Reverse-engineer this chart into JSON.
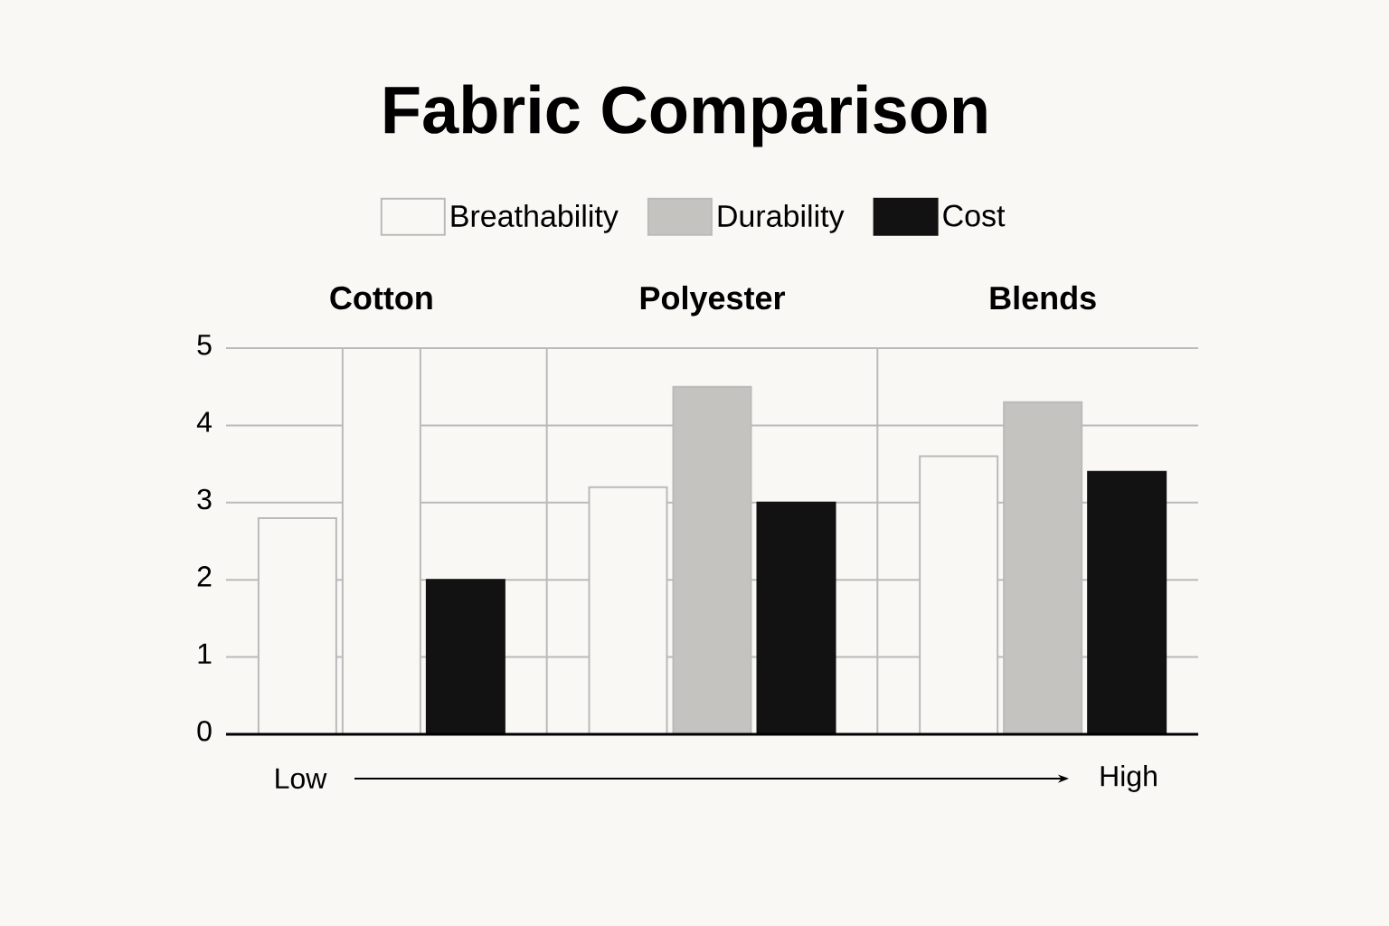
{
  "chart_data": {
    "type": "bar",
    "title": "Fabric Comparison",
    "categories": [
      "Cotton",
      "Polyester",
      "Blends"
    ],
    "series": [
      {
        "name": "Breathability",
        "color": "#faf8f5",
        "values": [
          2.8,
          3.2,
          3.6
        ]
      },
      {
        "name": "Durability",
        "color": "#c4c3bf",
        "colors": [
          "#faf8f5",
          "#c4c3bf",
          "#c4c3bf"
        ],
        "values": [
          5,
          4.5,
          4.3
        ]
      },
      {
        "name": "Cost",
        "color": "#121212",
        "values": [
          2.0,
          3.0,
          3.4
        ]
      }
    ],
    "ylim": [
      0,
      5
    ],
    "yticks": [
      0,
      1,
      2,
      3,
      4,
      5
    ],
    "grid": true,
    "legend": "top",
    "annotations": [
      "Low",
      "High"
    ]
  }
}
